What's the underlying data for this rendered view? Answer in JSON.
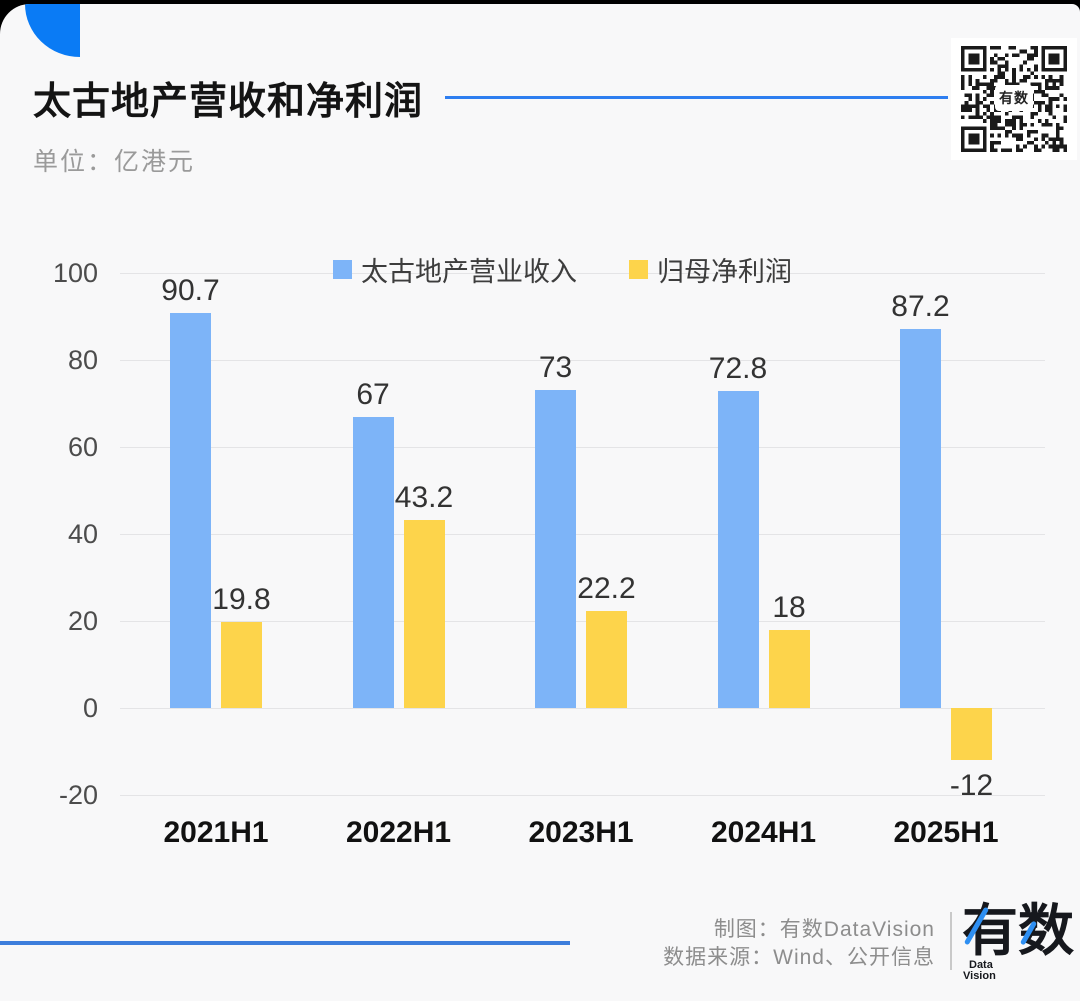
{
  "header": {
    "title": "太古地产营收和净利润",
    "unit_label": "单位：亿港元"
  },
  "qr": {
    "center_label": "有数"
  },
  "chart_data": {
    "type": "bar",
    "title": "太古地产营收和净利润",
    "unit": "亿港元",
    "categories": [
      "2021H1",
      "2022H1",
      "2023H1",
      "2024H1",
      "2025H1"
    ],
    "series": [
      {
        "name": "太古地产营业收入",
        "color": "#7db4f8",
        "values": [
          90.7,
          67,
          73,
          72.8,
          87.2
        ]
      },
      {
        "name": "归母净利润",
        "color": "#fdd44b",
        "values": [
          19.8,
          43.2,
          22.2,
          18,
          -12
        ]
      }
    ],
    "y_ticks": [
      100,
      80,
      60,
      40,
      20,
      0,
      -20
    ],
    "ylim": [
      -20,
      100
    ],
    "grid": true,
    "legend_position": "top"
  },
  "footer": {
    "credit": "制图：有数DataVision",
    "source": "数据来源：Wind、公开信息",
    "logo_text": "有数",
    "logo_sub_line1": "Data",
    "logo_sub_line2": "Vision"
  },
  "colors": {
    "arc": "#0a7bf5",
    "title_line": "#2e7ef0",
    "bottom_line": "#3d7edc",
    "logo_stroke": "#2e8ff2",
    "background": "#f8f8f9",
    "grid": "#e4e4e6"
  }
}
